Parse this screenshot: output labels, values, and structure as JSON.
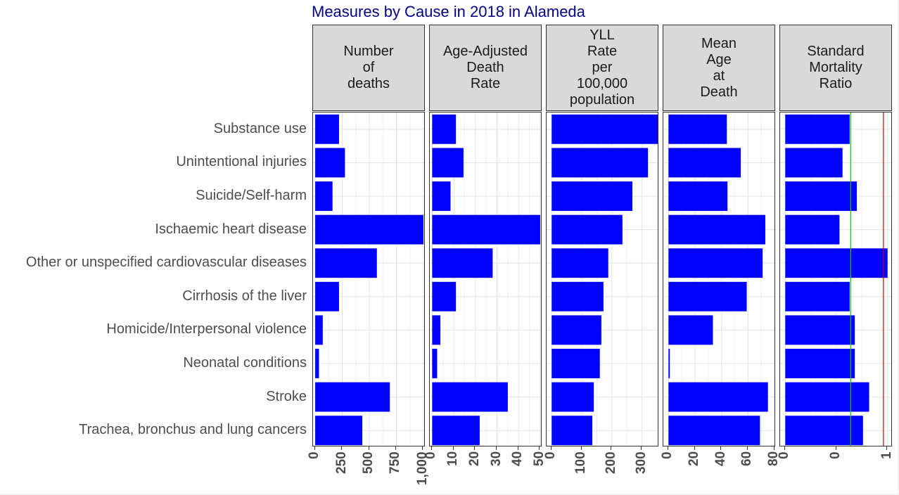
{
  "chart_data": {
    "type": "bar",
    "orientation": "horizontal",
    "title": "Measures by Cause in 2018 in Alameda",
    "categories": [
      "Substance use",
      "Unintentional injuries",
      "Suicide/Self-harm",
      "Ischaemic heart disease",
      "Other or unspecified cardiovascular diseases",
      "Cirrhosis of the liver",
      "Homicide/Interpersonal violence",
      "Neonatal conditions",
      "Stroke",
      "Trachea, bronchus and lung cancers"
    ],
    "bar_color": "#0000ff",
    "grid": true,
    "panels": [
      {
        "name": "Number\nof\ndeaths",
        "xlim": [
          -20,
          1020
        ],
        "ticks": [
          0,
          250,
          500,
          750,
          1000
        ],
        "tick_labels": [
          "0",
          "250",
          "500",
          "750",
          "1,000"
        ],
        "values": [
          220,
          275,
          160,
          1000,
          570,
          220,
          70,
          35,
          690,
          435
        ]
      },
      {
        "name": "Age-Adjusted\nDeath\nRate",
        "xlim": [
          -1.1,
          51
        ],
        "ticks": [
          0,
          10,
          20,
          30,
          40,
          50
        ],
        "tick_labels": [
          "0",
          "10",
          "20",
          "30",
          "40",
          "50"
        ],
        "values": [
          11,
          14.5,
          8.5,
          50,
          28,
          11,
          3.8,
          2.3,
          35,
          22
        ]
      },
      {
        "name": "YLL\nRate\nper\n100,000\npopulation",
        "xlim": [
          -17,
          357
        ],
        "ticks": [
          0,
          100,
          200,
          300
        ],
        "tick_labels": [
          "0",
          "100",
          "200",
          "300"
        ],
        "values": [
          355,
          320,
          268,
          235,
          188,
          172,
          165,
          160,
          140,
          135
        ]
      },
      {
        "name": "Mean\nAge\nat\nDeath",
        "xlim": [
          -3.9,
          81
        ],
        "ticks": [
          0,
          20,
          40,
          60,
          80
        ],
        "tick_labels": [
          "0",
          "20",
          "40",
          "60",
          "80"
        ],
        "values": [
          44,
          54.5,
          44.5,
          73,
          71,
          59,
          33.5,
          1,
          75,
          69
        ]
      },
      {
        "name": "Standard\nMortality\nRatio",
        "xlim": [
          -0.05,
          1.05
        ],
        "ticks": [
          0,
          0.5,
          1
        ],
        "tick_labels": [
          "0",
          "0",
          "1"
        ],
        "values": [
          0.63,
          0.56,
          0.7,
          0.53,
          1,
          0.63,
          0.68,
          0.68,
          0.82,
          0.76
        ],
        "reference_lines": [
          {
            "value": 0.64,
            "color": "#00cc00"
          },
          {
            "value": 0.96,
            "color": "#cc0000"
          }
        ]
      }
    ]
  }
}
